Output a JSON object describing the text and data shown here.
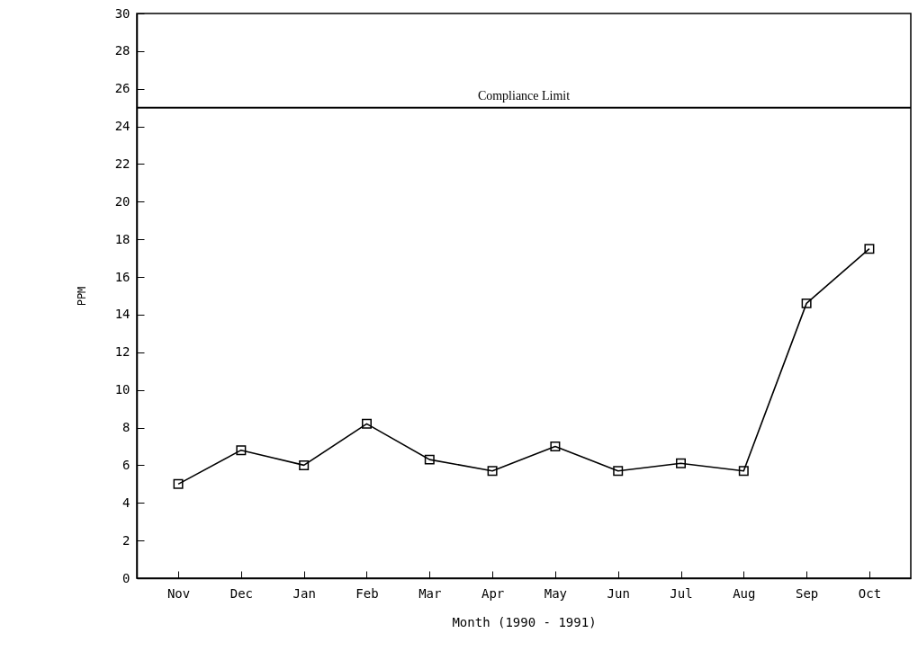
{
  "chart_data": {
    "type": "line",
    "xlabel": "Month (1990 - 1991)",
    "ylabel": "PPM",
    "categories": [
      "Nov",
      "Dec",
      "Jan",
      "Feb",
      "Mar",
      "Apr",
      "May",
      "Jun",
      "Jul",
      "Aug",
      "Sep",
      "Oct"
    ],
    "series": [
      {
        "color": "#000000",
        "values": [
          5.0,
          6.8,
          6.0,
          8.2,
          6.3,
          5.7,
          7.0,
          5.7,
          6.1,
          5.7,
          14.6,
          17.5
        ]
      }
    ],
    "ylim": [
      0,
      30
    ],
    "yticks": [
      0,
      2,
      4,
      6,
      8,
      10,
      12,
      14,
      16,
      18,
      20,
      22,
      24,
      26,
      28,
      30
    ],
    "ref_lines": [
      {
        "axis": "y",
        "value": 25,
        "label": "Compliance Limit",
        "color": "#000000"
      }
    ],
    "marker": "square",
    "line_style": "solid"
  }
}
